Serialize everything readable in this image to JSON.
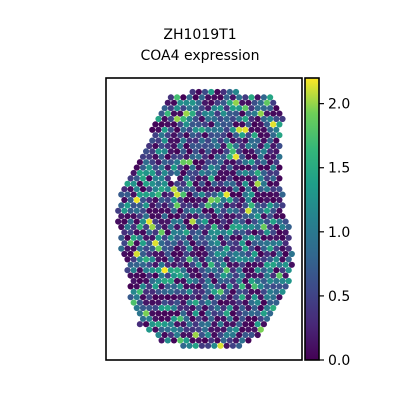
{
  "chart_data": {
    "type": "scatter",
    "title_lines": [
      "ZH1019T1",
      "COA4 expression"
    ],
    "xlabel": "",
    "ylabel": "",
    "colorbar": {
      "colormap": "viridis",
      "range": [
        0.0,
        2.2
      ],
      "ticks": [
        0.0,
        0.5,
        1.0,
        1.5,
        2.0
      ],
      "tick_labels": [
        "0.0",
        "0.5",
        "1.0",
        "1.5",
        "2.0"
      ]
    },
    "point_shape": "hexagonal spot grid",
    "value_summary": {
      "min": 0.0,
      "max": 2.2,
      "typical": "mostly 0.0–1.0 (purple to blue), sparse high values 1.5–2.2 (green/yellow)"
    },
    "axes_visible": false,
    "grid": false,
    "colors": {
      "low": "#440154",
      "mid": "#21918c",
      "high": "#fde725",
      "frame": "#000000"
    }
  }
}
